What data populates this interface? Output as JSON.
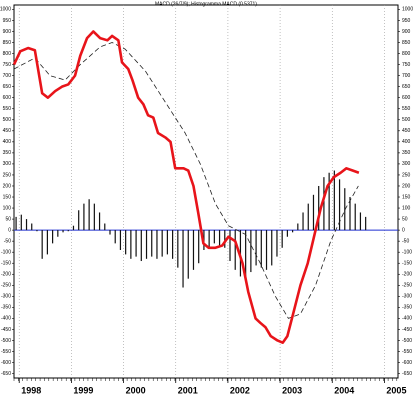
{
  "chart_data": {
    "type": "combo",
    "title": "MACD (26/7/9); Histogramma MACD (0.5371)",
    "xlim": [
      1997.9,
      2005.26
    ],
    "xticks": [
      1998,
      1999,
      2000,
      2001,
      2002,
      2003,
      2004,
      2005
    ],
    "ylim": [
      -670,
      1020
    ],
    "yticks": [
      1000,
      950,
      900,
      850,
      800,
      750,
      700,
      650,
      600,
      550,
      500,
      450,
      400,
      350,
      300,
      250,
      200,
      150,
      100,
      50,
      0,
      -50,
      -100,
      -150,
      -200,
      -250,
      -300,
      -350,
      -400,
      -450,
      -500,
      -550,
      -600,
      -650
    ],
    "grid": true,
    "zero_line_color": "#1f2fd0",
    "series": [
      {
        "type": "line",
        "color": "#e8141a",
        "dashed": false,
        "x": [
          1997.9,
          1998.02,
          1998.17,
          1998.3,
          1998.44,
          1998.55,
          1998.69,
          1998.82,
          1998.94,
          1999.07,
          1999.17,
          1999.3,
          1999.42,
          1999.55,
          1999.69,
          1999.78,
          1999.9,
          1999.97,
          2000.09,
          2000.17,
          2000.28,
          2000.38,
          2000.47,
          2000.57,
          2000.66,
          2000.8,
          2000.9,
          2000.99,
          2001.15,
          2001.24,
          2001.34,
          2001.43,
          2001.53,
          2001.63,
          2001.76,
          2001.89,
          2002.01,
          2002.14,
          2002.28,
          2002.39,
          2002.53,
          2002.62,
          2002.72,
          2002.82,
          2002.95,
          2003.05,
          2003.14,
          2003.26,
          2003.39,
          2003.53,
          2003.66,
          2003.78,
          2003.91,
          2004.03,
          2004.16,
          2004.27,
          2004.39,
          2004.51
        ],
        "values": [
          750,
          810,
          825,
          815,
          620,
          600,
          630,
          650,
          660,
          700,
          790,
          870,
          900,
          870,
          860,
          880,
          860,
          760,
          730,
          680,
          600,
          570,
          520,
          510,
          440,
          420,
          400,
          280,
          280,
          270,
          200,
          80,
          -60,
          -80,
          -80,
          -70,
          -30,
          -50,
          -150,
          -280,
          -400,
          -420,
          -440,
          -480,
          -500,
          -510,
          -480,
          -370,
          -250,
          -150,
          -20,
          100,
          200,
          240,
          260,
          280,
          270,
          260
        ]
      },
      {
        "type": "line",
        "color": "#222222",
        "dashed": true,
        "x": [
          1997.9,
          1998.3,
          1998.59,
          1998.88,
          1999.17,
          1999.55,
          1999.78,
          2000.03,
          2000.42,
          2000.8,
          2001.18,
          2001.47,
          2001.76,
          2002.01,
          2002.34,
          2002.62,
          2002.91,
          2003.16,
          2003.39,
          2003.68,
          2003.97,
          2004.26,
          2004.5
        ],
        "values": [
          730,
          780,
          700,
          680,
          750,
          830,
          850,
          820,
          720,
          580,
          440,
          300,
          120,
          20,
          -20,
          -150,
          -300,
          -400,
          -380,
          -250,
          -50,
          100,
          200
        ]
      },
      {
        "type": "bar",
        "color": "#111111",
        "dashed": false,
        "x": [
          1997.94,
          1998.04,
          1998.14,
          1998.24,
          1998.34,
          1998.44,
          1998.54,
          1998.64,
          1998.74,
          1998.84,
          1998.94,
          1999.04,
          1999.14,
          1999.24,
          1999.34,
          1999.44,
          1999.54,
          1999.64,
          1999.74,
          1999.84,
          1999.94,
          2000.04,
          2000.14,
          2000.24,
          2000.34,
          2000.44,
          2000.54,
          2000.64,
          2000.74,
          2000.84,
          2000.94,
          2001.04,
          2001.14,
          2001.24,
          2001.34,
          2001.44,
          2001.54,
          2001.64,
          2001.74,
          2001.84,
          2001.94,
          2002.04,
          2002.14,
          2002.24,
          2002.34,
          2002.44,
          2002.54,
          2002.64,
          2002.74,
          2002.84,
          2002.94,
          2003.04,
          2003.14,
          2003.24,
          2003.34,
          2003.44,
          2003.54,
          2003.64,
          2003.74,
          2003.84,
          2003.94,
          2004.04,
          2004.14,
          2004.24,
          2004.34,
          2004.44,
          2004.54,
          2004.64
        ],
        "values": [
          60,
          70,
          50,
          30,
          -5,
          -130,
          -110,
          -60,
          -30,
          -10,
          -5,
          20,
          90,
          120,
          140,
          120,
          80,
          30,
          -20,
          -60,
          -90,
          -110,
          -130,
          -120,
          -140,
          -130,
          -120,
          -130,
          -120,
          -110,
          -130,
          -170,
          -260,
          -220,
          -180,
          -150,
          -90,
          -80,
          -60,
          -70,
          -80,
          -140,
          -180,
          -210,
          -230,
          -190,
          -160,
          -170,
          -180,
          -160,
          -120,
          -80,
          -30,
          -10,
          30,
          80,
          120,
          160,
          200,
          240,
          260,
          270,
          230,
          190,
          150,
          120,
          80,
          60
        ]
      }
    ]
  }
}
